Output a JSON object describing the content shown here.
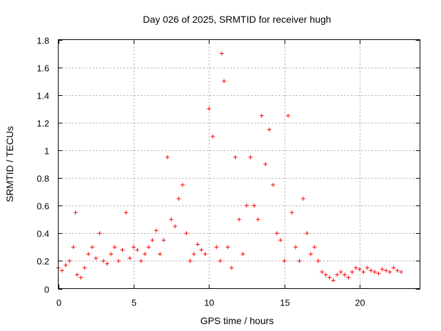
{
  "chart_data": {
    "type": "scatter",
    "title": "Day 026 of 2025, SRMTID for receiver hugh",
    "xlabel": "GPS time / hours",
    "ylabel": "SRMTID / TECUs",
    "xlim": [
      0,
      24
    ],
    "ylim": [
      0,
      1.8
    ],
    "xticks": [
      0,
      5,
      10,
      15,
      20
    ],
    "xtick_labels": [
      "0",
      "5",
      "10",
      "15",
      "20"
    ],
    "yticks": [
      0,
      0.2,
      0.4,
      0.6,
      0.8,
      1,
      1.2,
      1.4,
      1.6,
      1.8
    ],
    "ytick_labels": [
      "0",
      "0.2",
      "0.4",
      "0.6",
      "0.8",
      "1",
      "1.2",
      "1.4",
      "1.6",
      "1.8"
    ],
    "grid": true,
    "marker": "+",
    "series": [
      {
        "name": "SRMTID",
        "color": "#ff0000",
        "x": [
          0.0,
          0.25,
          0.5,
          0.75,
          1.0,
          1.15,
          1.25,
          1.5,
          1.75,
          2.0,
          2.25,
          2.5,
          2.75,
          3.0,
          3.25,
          3.5,
          3.75,
          4.0,
          4.25,
          4.5,
          4.75,
          5.0,
          5.25,
          5.5,
          5.75,
          6.0,
          6.25,
          6.5,
          6.75,
          7.0,
          7.25,
          7.5,
          7.75,
          8.0,
          8.25,
          8.5,
          8.75,
          9.0,
          9.25,
          9.5,
          9.75,
          10.0,
          10.25,
          10.5,
          10.75,
          10.85,
          11.0,
          11.25,
          11.5,
          11.75,
          12.0,
          12.25,
          12.5,
          12.75,
          13.0,
          13.25,
          13.5,
          13.75,
          14.0,
          14.25,
          14.5,
          14.75,
          15.0,
          15.25,
          15.5,
          15.75,
          16.0,
          16.25,
          16.5,
          16.75,
          17.0,
          17.25,
          17.5,
          17.75,
          18.0,
          18.25,
          18.5,
          18.75,
          19.0,
          19.25,
          19.5,
          19.75,
          20.0,
          20.25,
          20.5,
          20.75,
          21.0,
          21.25,
          21.5,
          21.75,
          22.0,
          22.25,
          22.5,
          22.75
        ],
        "y": [
          0.15,
          0.13,
          0.17,
          0.2,
          0.3,
          0.55,
          0.1,
          0.08,
          0.15,
          0.25,
          0.3,
          0.22,
          0.4,
          0.2,
          0.18,
          0.25,
          0.3,
          0.2,
          0.28,
          0.55,
          0.22,
          0.3,
          0.28,
          0.2,
          0.25,
          0.3,
          0.35,
          0.42,
          0.25,
          0.35,
          0.95,
          0.5,
          0.45,
          0.65,
          0.75,
          0.4,
          0.2,
          0.25,
          0.32,
          0.28,
          0.25,
          1.3,
          1.1,
          0.3,
          0.2,
          1.7,
          1.5,
          0.3,
          0.15,
          0.95,
          0.5,
          0.25,
          0.6,
          0.95,
          0.6,
          0.5,
          1.25,
          0.9,
          1.15,
          0.75,
          0.4,
          0.35,
          0.2,
          1.25,
          0.55,
          0.3,
          0.2,
          0.65,
          0.4,
          0.25,
          0.3,
          0.2,
          0.12,
          0.1,
          0.08,
          0.06,
          0.1,
          0.12,
          0.1,
          0.08,
          0.12,
          0.15,
          0.14,
          0.12,
          0.15,
          0.13,
          0.12,
          0.11,
          0.14,
          0.13,
          0.12,
          0.15,
          0.13,
          0.12
        ]
      }
    ]
  }
}
